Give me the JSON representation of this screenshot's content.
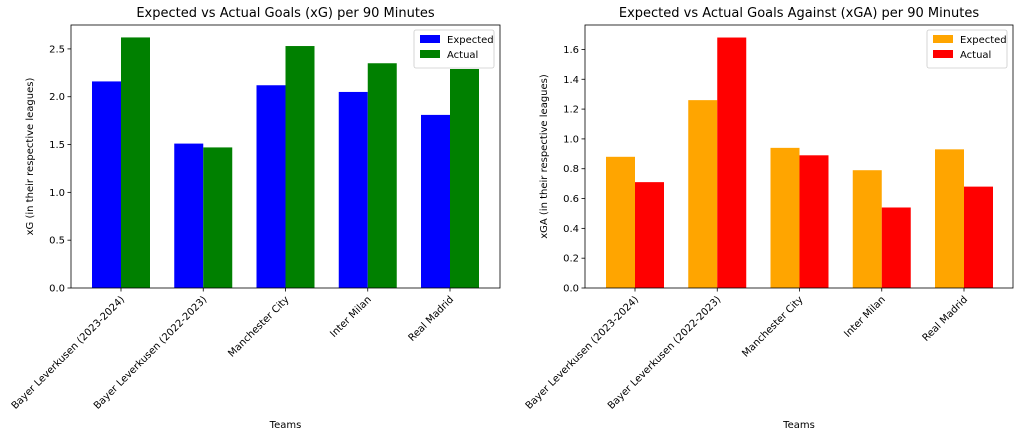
{
  "chart_data": [
    {
      "type": "bar",
      "title": "Expected vs Actual Goals (xG) per 90 Minutes",
      "xlabel": "Teams",
      "ylabel": "xG (in their respective leagues)",
      "categories": [
        "Bayer Leverkusen (2023-2024)",
        "Bayer Leverkusen (2022-2023)",
        "Manchester City",
        "Inter Milan",
        "Real Madrid"
      ],
      "series": [
        {
          "name": "Expected",
          "color": "#0000ff",
          "values": [
            2.16,
            1.51,
            2.12,
            2.05,
            1.81
          ]
        },
        {
          "name": "Actual",
          "color": "#008000",
          "values": [
            2.62,
            1.47,
            2.53,
            2.35,
            2.29
          ]
        }
      ],
      "ylim": [
        0,
        2.75
      ],
      "yticks": [
        "0.0",
        "0.5",
        "1.0",
        "1.5",
        "2.0",
        "2.5"
      ],
      "grid": false,
      "legend": "top-right"
    },
    {
      "type": "bar",
      "title": "Expected vs Actual Goals Against (xGA) per 90 Minutes",
      "xlabel": "Teams",
      "ylabel": "xGA (in their respective leagues)",
      "categories": [
        "Bayer Leverkusen (2023-2024)",
        "Bayer Leverkusen (2022-2023)",
        "Manchester City",
        "Inter Milan",
        "Real Madrid"
      ],
      "series": [
        {
          "name": "Expected",
          "color": "#ffa500",
          "values": [
            0.88,
            1.26,
            0.94,
            0.79,
            0.93
          ]
        },
        {
          "name": "Actual",
          "color": "#ff0000",
          "values": [
            0.71,
            1.68,
            0.89,
            0.54,
            0.68
          ]
        }
      ],
      "ylim": [
        0,
        1.764
      ],
      "yticks": [
        "0.0",
        "0.2",
        "0.4",
        "0.6",
        "0.8",
        "1.0",
        "1.2",
        "1.4",
        "1.6"
      ],
      "grid": false,
      "legend": "top-right"
    }
  ]
}
